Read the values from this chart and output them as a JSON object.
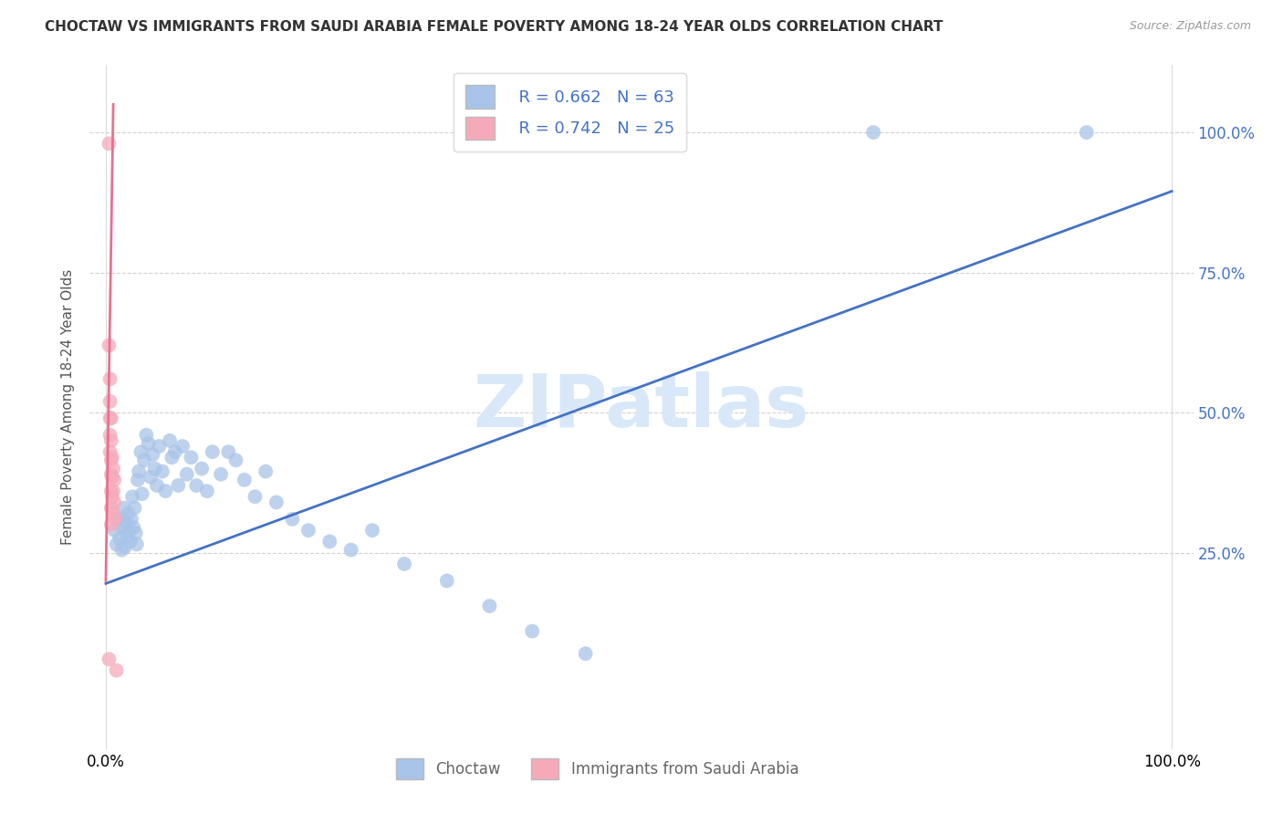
{
  "title": "CHOCTAW VS IMMIGRANTS FROM SAUDI ARABIA FEMALE POVERTY AMONG 18-24 YEAR OLDS CORRELATION CHART",
  "source": "Source: ZipAtlas.com",
  "ylabel": "Female Poverty Among 18-24 Year Olds",
  "ytick_labels": [
    "25.0%",
    "50.0%",
    "75.0%",
    "100.0%"
  ],
  "ytick_positions": [
    0.25,
    0.5,
    0.75,
    1.0
  ],
  "xtick_labels": [
    "0.0%",
    "100.0%"
  ],
  "xtick_positions": [
    0.0,
    1.0
  ],
  "choctaw_R": 0.662,
  "choctaw_N": 63,
  "saudi_R": 0.742,
  "saudi_N": 25,
  "choctaw_color": "#a8c4e8",
  "saudi_color": "#f5aaba",
  "choctaw_line_color": "#4472c4",
  "saudi_line_color": "#e87090",
  "watermark_color": "#d8e8f8",
  "background_color": "#ffffff",
  "grid_color": "#cccccc",
  "right_tick_color": "#4472c4",
  "choctaw_x": [
    0.008,
    0.01,
    0.012,
    0.013,
    0.015,
    0.016,
    0.017,
    0.018,
    0.019,
    0.02,
    0.021,
    0.022,
    0.023,
    0.024,
    0.025,
    0.026,
    0.027,
    0.028,
    0.029,
    0.03,
    0.031,
    0.033,
    0.034,
    0.036,
    0.038,
    0.04,
    0.042,
    0.044,
    0.046,
    0.048,
    0.05,
    0.053,
    0.056,
    0.06,
    0.062,
    0.065,
    0.068,
    0.072,
    0.076,
    0.08,
    0.085,
    0.09,
    0.095,
    0.1,
    0.108,
    0.115,
    0.122,
    0.13,
    0.14,
    0.15,
    0.16,
    0.175,
    0.19,
    0.21,
    0.23,
    0.25,
    0.28,
    0.32,
    0.36,
    0.4,
    0.45,
    0.72,
    0.92
  ],
  "choctaw_y": [
    0.29,
    0.265,
    0.31,
    0.275,
    0.255,
    0.295,
    0.33,
    0.26,
    0.305,
    0.28,
    0.32,
    0.29,
    0.27,
    0.31,
    0.35,
    0.295,
    0.33,
    0.285,
    0.265,
    0.38,
    0.395,
    0.43,
    0.355,
    0.415,
    0.46,
    0.445,
    0.385,
    0.425,
    0.4,
    0.37,
    0.44,
    0.395,
    0.36,
    0.45,
    0.42,
    0.43,
    0.37,
    0.44,
    0.39,
    0.42,
    0.37,
    0.4,
    0.36,
    0.43,
    0.39,
    0.43,
    0.415,
    0.38,
    0.35,
    0.395,
    0.34,
    0.31,
    0.29,
    0.27,
    0.255,
    0.29,
    0.23,
    0.2,
    0.155,
    0.11,
    0.07,
    1.0,
    1.0
  ],
  "saudi_x": [
    0.003,
    0.003,
    0.004,
    0.004,
    0.004,
    0.004,
    0.004,
    0.005,
    0.005,
    0.005,
    0.005,
    0.005,
    0.005,
    0.005,
    0.006,
    0.006,
    0.006,
    0.007,
    0.007,
    0.007,
    0.008,
    0.008,
    0.009,
    0.01,
    0.003
  ],
  "saudi_y": [
    0.98,
    0.62,
    0.56,
    0.52,
    0.49,
    0.46,
    0.43,
    0.49,
    0.45,
    0.415,
    0.39,
    0.36,
    0.33,
    0.3,
    0.42,
    0.385,
    0.35,
    0.4,
    0.36,
    0.32,
    0.38,
    0.34,
    0.31,
    0.04,
    0.06
  ],
  "blue_line_x": [
    0.0,
    1.0
  ],
  "blue_line_y": [
    0.195,
    0.895
  ],
  "pink_line_x0": 0.003,
  "pink_line_x1": 0.011,
  "xlim": [
    -0.015,
    1.02
  ],
  "ylim": [
    -0.1,
    1.12
  ]
}
